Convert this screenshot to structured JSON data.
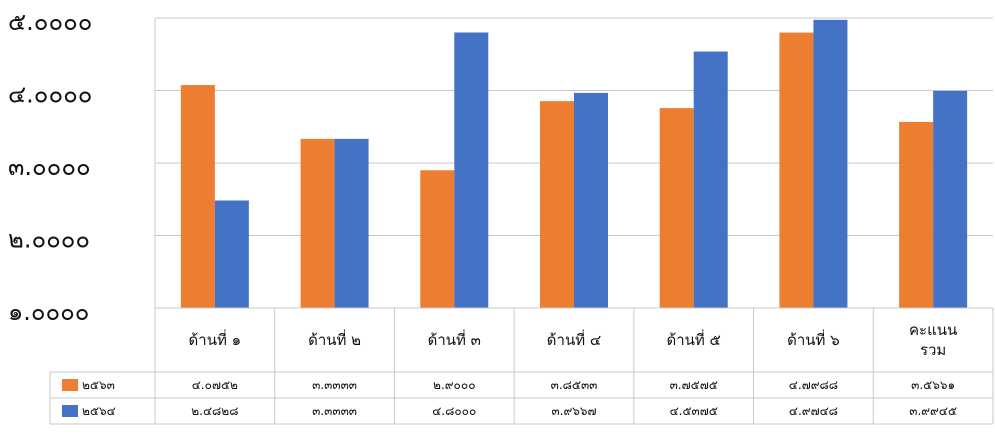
{
  "chart_data": {
    "type": "bar",
    "title": "",
    "xlabel": "",
    "ylabel": "",
    "ylim": [
      1,
      5
    ],
    "yticks": [
      1,
      2,
      3,
      4,
      5
    ],
    "ytick_labels": [
      "๑.๐๐๐๐",
      "๒.๐๐๐๐",
      "๓.๐๐๐๐",
      "๔.๐๐๐๐",
      "๕.๐๐๐๐"
    ],
    "grid": true,
    "legend": "data-table-left",
    "categories": [
      [
        "ด้านที่ ๑"
      ],
      [
        "ด้านที่ ๒"
      ],
      [
        "ด้านที่ ๓"
      ],
      [
        "ด้านที่ ๔"
      ],
      [
        "ด้านที่ ๕"
      ],
      [
        "ด้านที่ ๖"
      ],
      [
        "คะแนน",
        "รวม"
      ]
    ],
    "series": [
      {
        "name": "๒๕๖๓",
        "color": "#ED7D31",
        "values": [
          4.0752,
          3.3333,
          2.9,
          3.8533,
          3.7575,
          4.7988,
          3.5661
        ],
        "labels": [
          "๔.๐๗๕๒",
          "๓.๓๓๓๓",
          "๒.๙๐๐๐",
          "๓.๘๕๓๓",
          "๓.๗๕๗๕",
          "๔.๗๙๘๘",
          "๓.๕๖๖๑"
        ]
      },
      {
        "name": "๒๕๖๔",
        "color": "#4472C4",
        "values": [
          2.4828,
          3.3333,
          4.8,
          3.9667,
          4.5375,
          4.9748,
          3.9945
        ],
        "labels": [
          "๒.๔๘๒๘",
          "๓.๓๓๓๓",
          "๔.๘๐๐๐",
          "๓.๙๖๖๗",
          "๔.๕๓๗๕",
          "๔.๙๗๔๘",
          "๓.๙๙๔๕"
        ]
      }
    ]
  }
}
